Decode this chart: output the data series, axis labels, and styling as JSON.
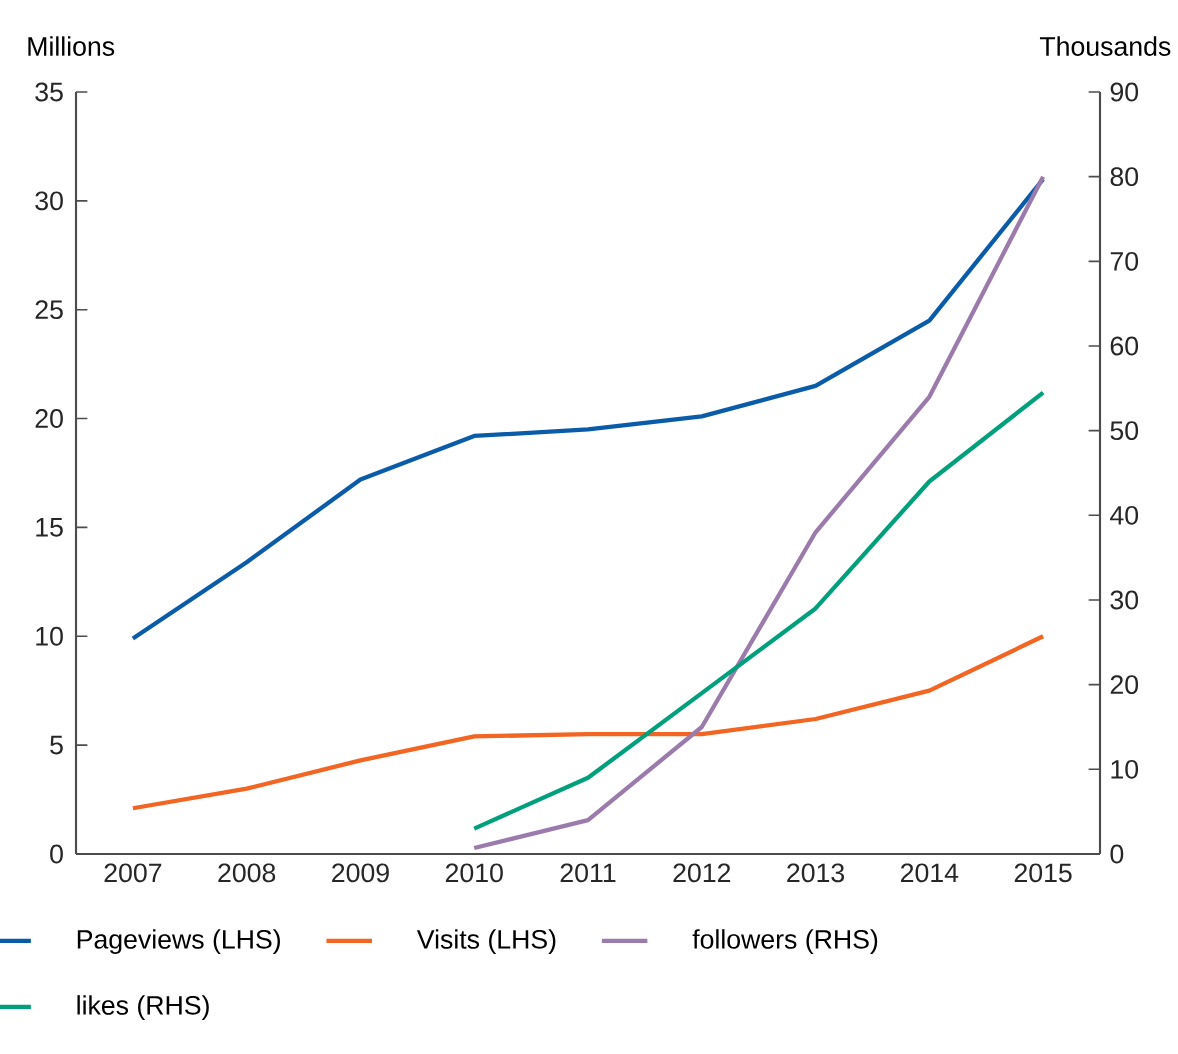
{
  "chart_data": {
    "type": "line",
    "ylabel": "Millions",
    "y2label": "Thousands",
    "categories": [
      "2007",
      "2008",
      "2009",
      "2010",
      "2011",
      "2012",
      "2013",
      "2014",
      "2015"
    ],
    "series": [
      {
        "name": "Pageviews (LHS)",
        "color": "#0a5ca8",
        "values": [
          9.9,
          13.4,
          17.2,
          19.2,
          19.5,
          20.1,
          21.5,
          24.5,
          31.0
        ]
      },
      {
        "name": "Visits (LHS)",
        "color": "#f26522",
        "values": [
          2.1,
          3.0,
          4.3,
          5.4,
          5.5,
          5.5,
          6.2,
          7.5,
          10.0
        ]
      },
      {
        "name": "followers (RHS)",
        "color": "#9b7bac",
        "axis": "y2",
        "values": [
          null,
          null,
          null,
          0.7,
          4,
          15,
          38,
          54,
          80
        ]
      },
      {
        "name": "likes (RHS)",
        "color": "#00a07d",
        "axis": "y2",
        "values": [
          null,
          null,
          null,
          3,
          9,
          19,
          29,
          44,
          54.5
        ]
      }
    ],
    "ylim": [
      0,
      35
    ],
    "yticks": [
      0,
      5,
      10,
      15,
      20,
      25,
      30,
      35
    ],
    "y2lim": [
      0,
      90
    ],
    "y2ticks": [
      0,
      10,
      20,
      30,
      40,
      50,
      60,
      70,
      80,
      90
    ],
    "legend": "bottom",
    "grid": false,
    "marker": "none",
    "line_style": "solid"
  }
}
